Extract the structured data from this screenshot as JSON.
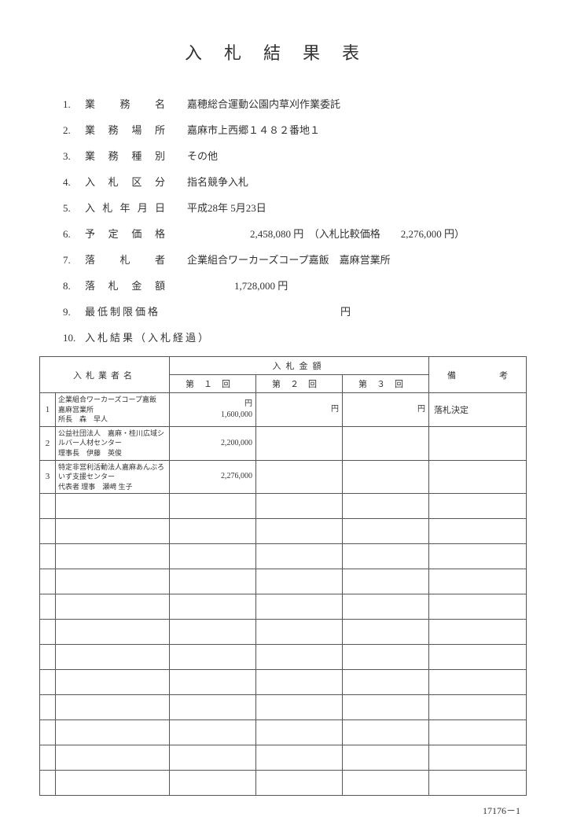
{
  "title": "入札結果表",
  "info": [
    {
      "num": "1.",
      "label": "業務名",
      "value": "嘉穂総合運動公園内草刈作業委託",
      "spread": true
    },
    {
      "num": "2.",
      "label": "業務場所",
      "value": "嘉麻市上西郷１４８２番地１",
      "spread": true
    },
    {
      "num": "3.",
      "label": "業務種別",
      "value": "その他",
      "spread": true
    },
    {
      "num": "4.",
      "label": "入札区分",
      "value": "指名競争入札",
      "spread": true
    },
    {
      "num": "5.",
      "label": "入札年月日",
      "value": "平成28年 5月23日",
      "spread": true
    },
    {
      "num": "6.",
      "label": "予定価格",
      "value": "2,458,080 円　（入札比較価格　　2,276,000 円）",
      "spread": true,
      "cls": "price"
    },
    {
      "num": "7.",
      "label": "落札者",
      "value": "企業組合ワーカーズコープ嘉飯　嘉麻営業所",
      "spread": true
    },
    {
      "num": "8.",
      "label": "落札金額",
      "value": "1,728,000 円",
      "spread": true,
      "cls": "amount"
    },
    {
      "num": "9.",
      "label": "最低制限価格",
      "value": "円",
      "spread": false,
      "cls": "yen-only"
    },
    {
      "num": "10.",
      "label": "入札結果（入札経過）",
      "value": "",
      "spread": false
    }
  ],
  "table": {
    "header": {
      "name": "入札業者名",
      "bid_amount": "入札金額",
      "round1": "第１回",
      "round2": "第２回",
      "round3": "第３回",
      "remarks1": "備",
      "remarks2": "考"
    },
    "rows": [
      {
        "num": "1",
        "name_line1": "企業組合ワーカーズコープ嘉飯　嘉麻営業所",
        "name_line2": "所長　森　早人",
        "bid1_unit": "円",
        "bid1_val": "1,600,000",
        "bid2_unit": "円",
        "bid2_val": "",
        "bid3_unit": "円",
        "bid3_val": "",
        "remarks": "落札決定"
      },
      {
        "num": "2",
        "name_line1": "公益社団法人　嘉麻・桂川広域シルバー人材センター",
        "name_line2": "理事長　伊藤　英俊",
        "bid1_unit": "",
        "bid1_val": "2,200,000",
        "bid2_unit": "",
        "bid2_val": "",
        "bid3_unit": "",
        "bid3_val": "",
        "remarks": ""
      },
      {
        "num": "3",
        "name_line1": "特定非営利活動法人嘉麻あんぶろいず支援センター",
        "name_line2": "代表者 理事　瀬﨑 生子",
        "bid1_unit": "",
        "bid1_val": "2,276,000",
        "bid2_unit": "",
        "bid2_val": "",
        "bid3_unit": "",
        "bid3_val": "",
        "remarks": ""
      }
    ],
    "empty_rows": 12
  },
  "footer": "17176－1"
}
